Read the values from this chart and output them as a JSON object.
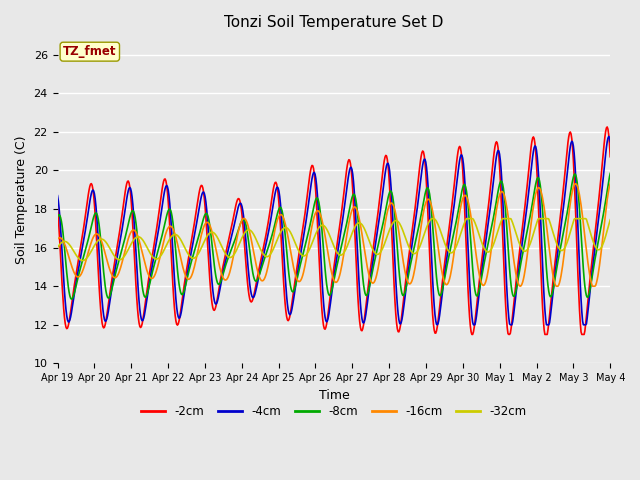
{
  "title": "Tonzi Soil Temperature Set D",
  "xlabel": "Time",
  "ylabel": "Soil Temperature (C)",
  "ylim": [
    10,
    27
  ],
  "yticks": [
    10,
    12,
    14,
    16,
    18,
    20,
    22,
    24,
    26
  ],
  "legend_label": "TZ_fmet",
  "legend_box_color": "#ffffcc",
  "legend_box_edge": "#999900",
  "legend_text_color": "#990000",
  "background_color": "#e8e8e8",
  "plot_bg_color": "#e8e8e8",
  "series_colors": [
    "#ff0000",
    "#0000cc",
    "#00aa00",
    "#ff8800",
    "#cccc00"
  ],
  "series_labels": [
    "-2cm",
    "-4cm",
    "-8cm",
    "-16cm",
    "-32cm"
  ],
  "series_linewidths": [
    1.2,
    1.2,
    1.2,
    1.2,
    1.2
  ],
  "tick_labels": [
    "Apr 19",
    "Apr 20",
    "Apr 21",
    "Apr 22",
    "Apr 23",
    "Apr 24",
    "Apr 25",
    "Apr 26",
    "Apr 27",
    "Apr 28",
    "Apr 29",
    "Apr 30",
    "May 1",
    "May 2",
    "May 3",
    "May 4"
  ]
}
